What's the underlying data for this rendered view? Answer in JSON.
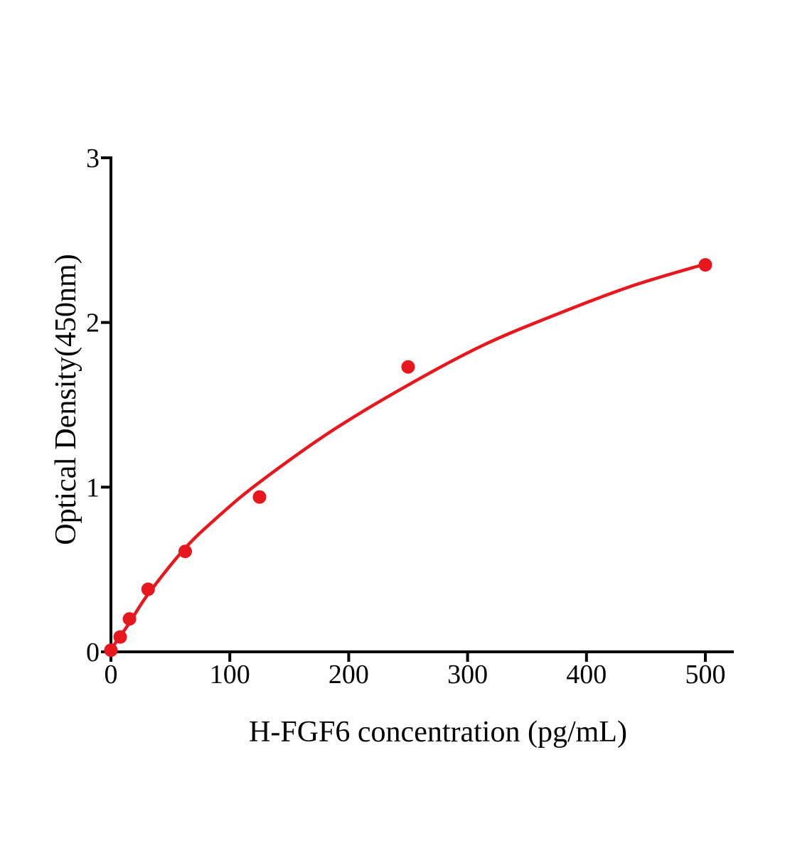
{
  "figure": {
    "background_color": "#ffffff",
    "axis_color": "#000000",
    "accent_color": "#e8161d"
  },
  "chart_data": {
    "type": "scatter",
    "title": "",
    "xlabel": "H-FGF6 concentration (pg/mL)",
    "ylabel": "Optical Density(450nm)",
    "xlim": [
      0,
      524
    ],
    "ylim": [
      0,
      3
    ],
    "x_ticks": [
      0,
      100,
      200,
      300,
      400,
      500
    ],
    "y_ticks": [
      0,
      1,
      2,
      3
    ],
    "grid": false,
    "legend": false,
    "series": [
      {
        "name": "H-FGF6 standard points",
        "type": "scatter",
        "marker": "circle",
        "color": "#e8161d",
        "x": [
          0,
          7.8,
          15.6,
          31.25,
          62.5,
          125,
          250,
          500
        ],
        "y": [
          0.01,
          0.09,
          0.2,
          0.38,
          0.61,
          0.94,
          1.73,
          2.35
        ]
      },
      {
        "name": "fitted standard curve",
        "type": "line",
        "color": "#e8161d",
        "x": [
          0,
          15,
          31.25,
          62.5,
          90,
          125,
          187.5,
          250,
          312.5,
          375,
          437.5,
          500
        ],
        "y": [
          0.015,
          0.17,
          0.35,
          0.63,
          0.82,
          1.03,
          1.35,
          1.62,
          1.86,
          2.05,
          2.22,
          2.355
        ]
      }
    ]
  }
}
